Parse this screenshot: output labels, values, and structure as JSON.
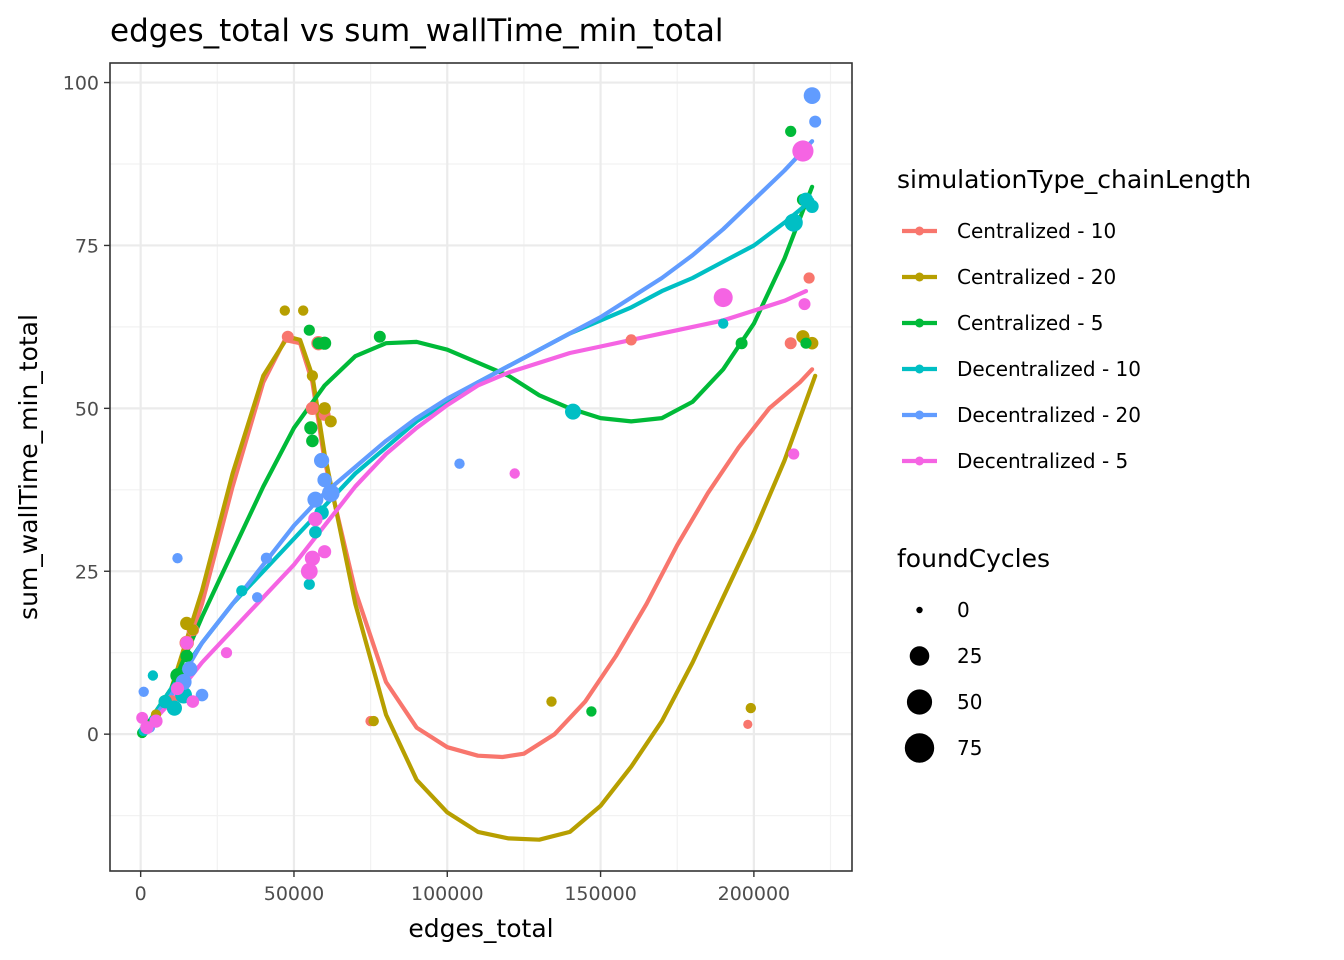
{
  "chart_data": {
    "type": "scatter",
    "title": "edges_total  vs  sum_wallTime_min_total",
    "xlabel": "edges_total",
    "ylabel": "sum_wallTime_min_total",
    "xlim": [
      -10000,
      232000
    ],
    "ylim": [
      -21,
      103
    ],
    "x_ticks": [
      0,
      50000,
      100000,
      150000,
      200000
    ],
    "x_tick_labels": [
      "0",
      "50000",
      "100000",
      "150000",
      "200000"
    ],
    "y_ticks": [
      0,
      25,
      50,
      75,
      100
    ],
    "y_tick_labels": [
      "0",
      "25",
      "50",
      "75",
      "100"
    ],
    "grid": true,
    "legend_position": "right",
    "color_legend_title": "simulationType_chainLength",
    "size_legend_title": "foundCycles",
    "size_legend": [
      {
        "label": "0",
        "value": 0
      },
      {
        "label": "25",
        "value": 25
      },
      {
        "label": "50",
        "value": 50
      },
      {
        "label": "75",
        "value": 75
      }
    ],
    "series": [
      {
        "name": "Centralized - 10",
        "color": "#F8766D",
        "points": [
          [
            500,
            0.2,
            1
          ],
          [
            2000,
            1,
            2
          ],
          [
            5000,
            2,
            3
          ],
          [
            10000,
            5,
            5
          ],
          [
            15000,
            14,
            8
          ],
          [
            17000,
            16,
            5
          ],
          [
            48000,
            61,
            4
          ],
          [
            56000,
            50,
            6
          ],
          [
            58000,
            60,
            8
          ],
          [
            60000,
            49,
            4
          ],
          [
            75000,
            2,
            2
          ],
          [
            160000,
            60.5,
            3
          ],
          [
            198000,
            1.5,
            1
          ],
          [
            212000,
            60,
            4
          ],
          [
            218000,
            70,
            3
          ]
        ],
        "smooth": [
          [
            0,
            0
          ],
          [
            10000,
            6
          ],
          [
            20000,
            20
          ],
          [
            30000,
            38
          ],
          [
            40000,
            54
          ],
          [
            47000,
            60.5
          ],
          [
            52000,
            60
          ],
          [
            56000,
            54
          ],
          [
            60000,
            42
          ],
          [
            70000,
            22
          ],
          [
            80000,
            8
          ],
          [
            90000,
            1
          ],
          [
            100000,
            -2
          ],
          [
            110000,
            -3.3
          ],
          [
            118000,
            -3.5
          ],
          [
            125000,
            -3
          ],
          [
            135000,
            0
          ],
          [
            145000,
            5
          ],
          [
            155000,
            12
          ],
          [
            165000,
            20
          ],
          [
            175000,
            29
          ],
          [
            185000,
            37
          ],
          [
            195000,
            44
          ],
          [
            205000,
            50
          ],
          [
            215000,
            54
          ],
          [
            219000,
            56
          ]
        ]
      },
      {
        "name": "Centralized - 20",
        "color": "#B79F00",
        "points": [
          [
            1000,
            0.5,
            1
          ],
          [
            5000,
            3,
            2
          ],
          [
            15000,
            17,
            6
          ],
          [
            17000,
            16,
            3
          ],
          [
            47000,
            65,
            2
          ],
          [
            53000,
            65,
            2
          ],
          [
            56000,
            55,
            3
          ],
          [
            60000,
            50,
            5
          ],
          [
            62000,
            48,
            4
          ],
          [
            76000,
            2,
            2
          ],
          [
            134000,
            5,
            2
          ],
          [
            199000,
            4,
            2
          ],
          [
            216000,
            61,
            6
          ],
          [
            219000,
            60,
            5
          ]
        ],
        "smooth": [
          [
            0,
            0
          ],
          [
            10000,
            7
          ],
          [
            20000,
            22
          ],
          [
            30000,
            40
          ],
          [
            40000,
            55
          ],
          [
            48000,
            61
          ],
          [
            52000,
            60.5
          ],
          [
            56000,
            55
          ],
          [
            60000,
            43
          ],
          [
            70000,
            20
          ],
          [
            80000,
            3
          ],
          [
            90000,
            -7
          ],
          [
            100000,
            -12
          ],
          [
            110000,
            -15
          ],
          [
            120000,
            -16
          ],
          [
            130000,
            -16.2
          ],
          [
            140000,
            -15
          ],
          [
            150000,
            -11
          ],
          [
            160000,
            -5
          ],
          [
            170000,
            2
          ],
          [
            180000,
            11
          ],
          [
            190000,
            21
          ],
          [
            200000,
            31
          ],
          [
            210000,
            42
          ],
          [
            220000,
            55
          ]
        ]
      },
      {
        "name": "Centralized - 5",
        "color": "#00BA38",
        "points": [
          [
            500,
            0.2,
            2
          ],
          [
            3000,
            1.5,
            3
          ],
          [
            8000,
            5,
            6
          ],
          [
            12000,
            9,
            8
          ],
          [
            15000,
            12,
            5
          ],
          [
            55000,
            62,
            3
          ],
          [
            55500,
            47,
            6
          ],
          [
            56000,
            45,
            5
          ],
          [
            58000,
            60,
            4
          ],
          [
            60000,
            60,
            6
          ],
          [
            78000,
            61,
            4
          ],
          [
            147000,
            3.5,
            2
          ],
          [
            196000,
            60,
            4
          ],
          [
            212000,
            92.5,
            3
          ],
          [
            216000,
            82,
            4
          ],
          [
            217000,
            60,
            3
          ]
        ],
        "smooth": [
          [
            0,
            0
          ],
          [
            10000,
            7
          ],
          [
            20000,
            18
          ],
          [
            30000,
            28
          ],
          [
            40000,
            38
          ],
          [
            50000,
            47
          ],
          [
            60000,
            53.5
          ],
          [
            70000,
            58
          ],
          [
            80000,
            60
          ],
          [
            90000,
            60.2
          ],
          [
            100000,
            59
          ],
          [
            110000,
            57
          ],
          [
            120000,
            55
          ],
          [
            130000,
            52
          ],
          [
            140000,
            50
          ],
          [
            150000,
            48.5
          ],
          [
            160000,
            48
          ],
          [
            170000,
            48.5
          ],
          [
            180000,
            51
          ],
          [
            190000,
            56
          ],
          [
            200000,
            63
          ],
          [
            210000,
            73
          ],
          [
            219000,
            84
          ]
        ]
      },
      {
        "name": "Decentralized - 10",
        "color": "#00BFC4",
        "points": [
          [
            1000,
            0.5,
            2
          ],
          [
            4000,
            9,
            2
          ],
          [
            8000,
            5,
            6
          ],
          [
            11000,
            4,
            10
          ],
          [
            14000,
            6,
            14
          ],
          [
            33000,
            22,
            3
          ],
          [
            55000,
            23,
            3
          ],
          [
            57000,
            31,
            5
          ],
          [
            59000,
            34,
            8
          ],
          [
            141000,
            49.5,
            12
          ],
          [
            190000,
            63,
            2
          ],
          [
            213000,
            78.5,
            18
          ],
          [
            217000,
            82,
            8
          ],
          [
            219000,
            81,
            6
          ]
        ],
        "smooth": [
          [
            0,
            0
          ],
          [
            10000,
            7
          ],
          [
            20000,
            14
          ],
          [
            30000,
            20
          ],
          [
            40000,
            25
          ],
          [
            50000,
            30
          ],
          [
            60000,
            35
          ],
          [
            70000,
            40
          ],
          [
            80000,
            44
          ],
          [
            90000,
            48
          ],
          [
            100000,
            51
          ],
          [
            110000,
            54
          ],
          [
            120000,
            56.5
          ],
          [
            130000,
            59
          ],
          [
            140000,
            61.5
          ],
          [
            150000,
            63.5
          ],
          [
            160000,
            65.5
          ],
          [
            170000,
            68
          ],
          [
            180000,
            70
          ],
          [
            190000,
            72.5
          ],
          [
            200000,
            75
          ],
          [
            210000,
            78.5
          ],
          [
            219000,
            82
          ]
        ]
      },
      {
        "name": "Decentralized - 20",
        "color": "#619CFF",
        "points": [
          [
            1000,
            6.5,
            2
          ],
          [
            3000,
            1,
            2
          ],
          [
            12000,
            27,
            2
          ],
          [
            14000,
            8,
            12
          ],
          [
            16000,
            10,
            10
          ],
          [
            20000,
            6,
            5
          ],
          [
            38000,
            21,
            2
          ],
          [
            41000,
            27,
            3
          ],
          [
            57000,
            36,
            12
          ],
          [
            59000,
            42,
            10
          ],
          [
            60000,
            39,
            8
          ],
          [
            62000,
            37,
            16
          ],
          [
            104000,
            41.5,
            2
          ],
          [
            219000,
            98,
            14
          ],
          [
            220000,
            94,
            4
          ]
        ],
        "smooth": [
          [
            0,
            0
          ],
          [
            10000,
            6
          ],
          [
            20000,
            14
          ],
          [
            30000,
            20
          ],
          [
            40000,
            26
          ],
          [
            50000,
            32
          ],
          [
            60000,
            37
          ],
          [
            70000,
            41
          ],
          [
            80000,
            45
          ],
          [
            90000,
            48.5
          ],
          [
            100000,
            51.5
          ],
          [
            110000,
            54
          ],
          [
            120000,
            56.5
          ],
          [
            130000,
            59
          ],
          [
            140000,
            61.5
          ],
          [
            150000,
            64
          ],
          [
            160000,
            67
          ],
          [
            170000,
            70
          ],
          [
            180000,
            73.5
          ],
          [
            190000,
            77.5
          ],
          [
            200000,
            82
          ],
          [
            210000,
            86.5
          ],
          [
            219000,
            91
          ]
        ]
      },
      {
        "name": "Decentralized - 5",
        "color": "#F564E3",
        "points": [
          [
            500,
            2.5,
            4
          ],
          [
            2000,
            1,
            6
          ],
          [
            5000,
            2,
            6
          ],
          [
            12000,
            7,
            6
          ],
          [
            15000,
            14,
            6
          ],
          [
            17000,
            5,
            5
          ],
          [
            28000,
            12.5,
            3
          ],
          [
            55000,
            25,
            14
          ],
          [
            56000,
            27,
            10
          ],
          [
            57000,
            33,
            8
          ],
          [
            60000,
            28,
            6
          ],
          [
            122000,
            40,
            2
          ],
          [
            190000,
            67,
            20
          ],
          [
            213000,
            43,
            3
          ],
          [
            216000,
            89.5,
            28
          ],
          [
            216500,
            66,
            4
          ]
        ],
        "smooth": [
          [
            0,
            0
          ],
          [
            10000,
            5
          ],
          [
            20000,
            11
          ],
          [
            30000,
            16
          ],
          [
            40000,
            21
          ],
          [
            50000,
            26
          ],
          [
            60000,
            32
          ],
          [
            70000,
            38
          ],
          [
            80000,
            43
          ],
          [
            90000,
            47
          ],
          [
            100000,
            50.5
          ],
          [
            110000,
            53.5
          ],
          [
            120000,
            55.5
          ],
          [
            130000,
            57
          ],
          [
            140000,
            58.5
          ],
          [
            150000,
            59.5
          ],
          [
            160000,
            60.5
          ],
          [
            170000,
            61.5
          ],
          [
            180000,
            62.5
          ],
          [
            190000,
            63.5
          ],
          [
            200000,
            65
          ],
          [
            210000,
            66.5
          ],
          [
            217000,
            68
          ]
        ]
      }
    ]
  }
}
